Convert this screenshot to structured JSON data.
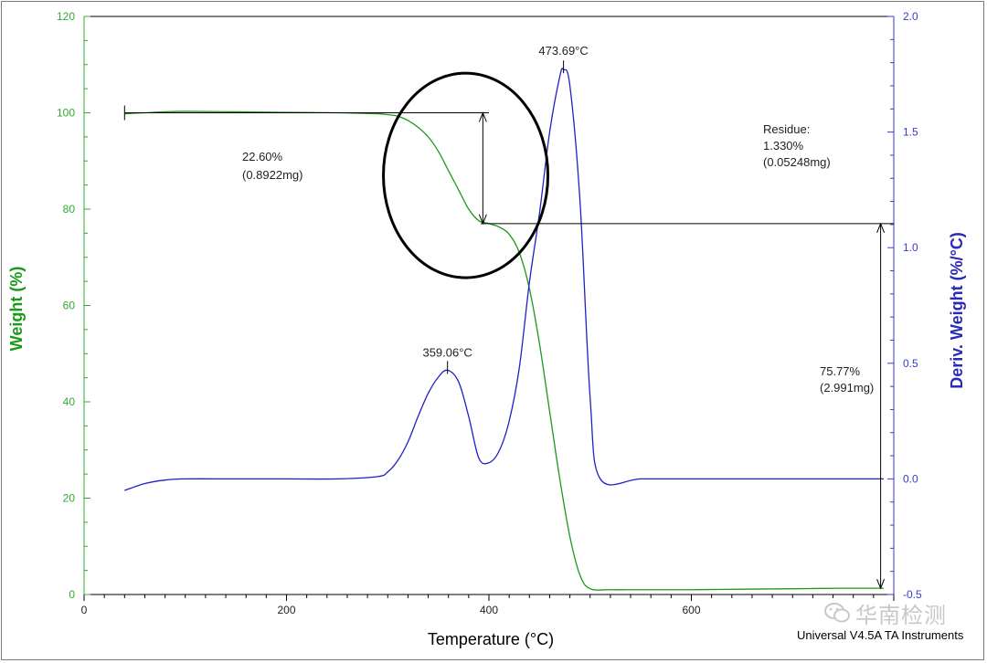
{
  "chart_data": {
    "type": "line",
    "xlabel": "Temperature (°C)",
    "ylabel_left": "Weight (%)",
    "ylabel_right": "Deriv. Weight (%/°C)",
    "xlim": [
      0,
      800
    ],
    "ylim_left": [
      0,
      120
    ],
    "ylim_right": [
      -0.5,
      2.0
    ],
    "x_ticks": [
      0,
      200,
      400,
      600
    ],
    "y_left_ticks": [
      0,
      20,
      40,
      60,
      80,
      100,
      120
    ],
    "y_right_ticks": [
      -0.5,
      0.0,
      0.5,
      1.0,
      1.5,
      2.0
    ],
    "y_right_tick_labels": [
      "-0.5",
      "0.0",
      "0.5",
      "1.0",
      "1.5",
      "2.0"
    ],
    "grid": false,
    "colors": {
      "weight": "#1a9a1a",
      "deriv": "#2020c8",
      "axis_left": "#33a833",
      "axis_right": "#3a3acc"
    },
    "series": [
      {
        "axis": "left",
        "x": [
          40,
          60,
          80,
          100,
          150,
          200,
          250,
          290,
          300,
          310,
          320,
          330,
          340,
          350,
          360,
          370,
          380,
          390,
          400,
          410,
          420,
          430,
          440,
          450,
          460,
          470,
          480,
          490,
          500,
          520,
          550,
          600,
          650,
          700,
          750,
          790
        ],
        "y": [
          99.8,
          100.0,
          100.2,
          100.3,
          100.2,
          100.1,
          100.0,
          99.8,
          99.6,
          99.3,
          98.4,
          97.0,
          95.0,
          92.0,
          88.0,
          84.0,
          80.0,
          77.6,
          77.0,
          76.3,
          74.8,
          71.0,
          63.5,
          52.0,
          38.0,
          24.0,
          12.0,
          4.0,
          1.2,
          1.0,
          1.0,
          1.0,
          1.1,
          1.2,
          1.3,
          1.3
        ]
      },
      {
        "axis": "right",
        "x": [
          40,
          60,
          80,
          100,
          150,
          200,
          250,
          290,
          300,
          310,
          320,
          330,
          340,
          350,
          359.06,
          370,
          380,
          390,
          400,
          410,
          420,
          430,
          440,
          450,
          460,
          470,
          473.69,
          480,
          490,
          500,
          510,
          550,
          600,
          650,
          700,
          750,
          790
        ],
        "y": [
          -0.05,
          -0.02,
          -0.005,
          0.0,
          0.0,
          0.0,
          0.0,
          0.01,
          0.03,
          0.08,
          0.16,
          0.27,
          0.37,
          0.44,
          0.47,
          0.42,
          0.27,
          0.09,
          0.07,
          0.12,
          0.25,
          0.48,
          0.85,
          1.15,
          1.5,
          1.74,
          1.77,
          1.7,
          1.2,
          0.35,
          0.0,
          0.0,
          0.0,
          0.0,
          0.0,
          0.0,
          0.0
        ]
      }
    ],
    "annotations": {
      "peak1": "359.06°C",
      "peak2": "473.69°C",
      "step1_line1": "22.60%",
      "step1_line2": "(0.8922mg)",
      "residue_line1": "Residue:",
      "residue_line2": "1.330%",
      "residue_line3": "(0.05248mg)",
      "step2_line1": "75.77%",
      "step2_line2": "(2.991mg)"
    }
  },
  "watermark": {
    "icon": "wechat-icon",
    "text": "华南检测"
  },
  "footer": "Universal V4.5A TA Instruments"
}
